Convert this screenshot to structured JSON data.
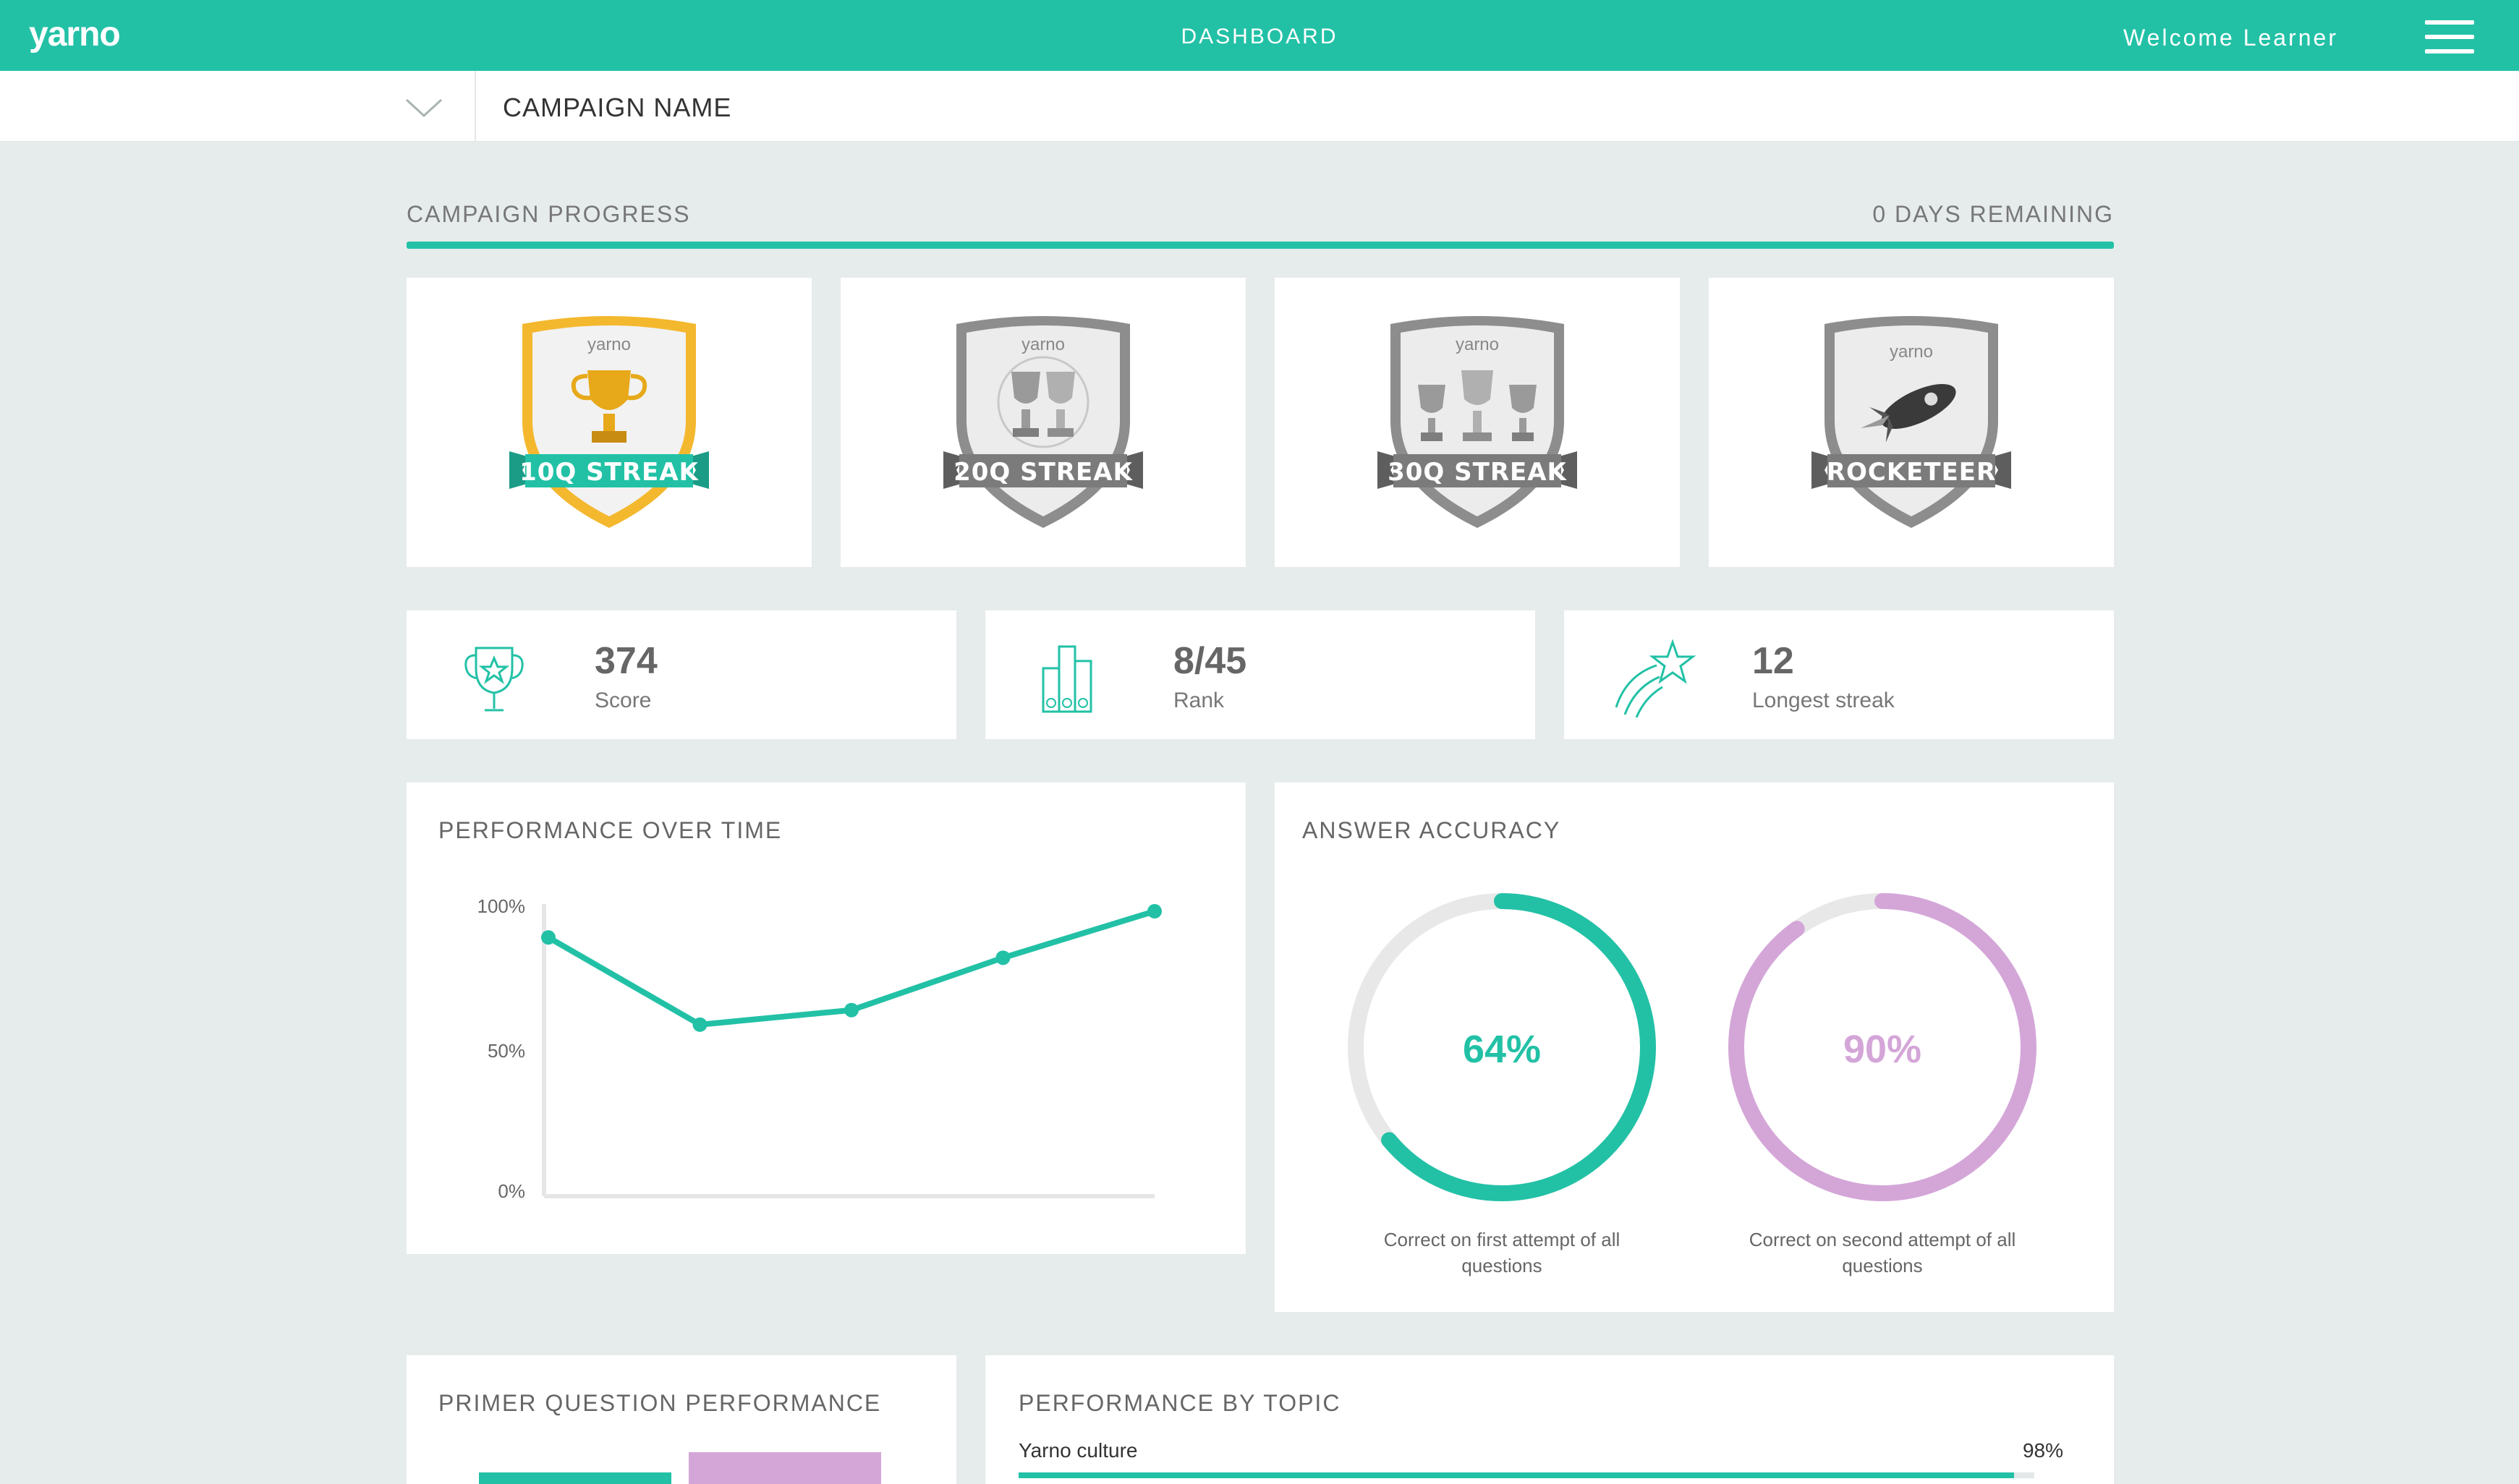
{
  "topbar": {
    "logo": "yarno",
    "title": "DASHBOARD",
    "welcome": "Welcome Learner"
  },
  "campaign": {
    "name": "CAMPAIGN NAME"
  },
  "progress": {
    "label": "CAMPAIGN PROGRESS",
    "days_remaining": "0 DAYS REMAINING",
    "fraction": 1.0
  },
  "badges": [
    {
      "label": "10Q STREAK",
      "brand": "yarno",
      "icon": "trophy-icon",
      "status": "earned"
    },
    {
      "label": "20Q STREAK",
      "brand": "yarno",
      "icon": "two-trophies-icon",
      "status": "locked"
    },
    {
      "label": "30Q STREAK",
      "brand": "yarno",
      "icon": "three-trophies-icon",
      "status": "locked"
    },
    {
      "label": "ROCKETEER",
      "brand": "yarno",
      "icon": "rocket-icon",
      "status": "locked"
    }
  ],
  "stats": [
    {
      "value": "374",
      "label": "Score",
      "icon": "trophy-star-icon"
    },
    {
      "value": "8/45",
      "label": "Rank",
      "icon": "podium-icon"
    },
    {
      "value": "12",
      "label": "Longest streak",
      "icon": "shooting-star-icon"
    }
  ],
  "performance": {
    "title": "PERFORMANCE OVER TIME",
    "y_ticks": [
      "100%",
      "50%",
      "0%"
    ]
  },
  "chart_data": {
    "type": "line",
    "x": [
      1,
      2,
      3,
      4,
      5
    ],
    "values": [
      89,
      59,
      64,
      82,
      98
    ],
    "ylim": [
      0,
      100
    ],
    "ytick_labels": [
      "100%",
      "50%",
      "0%"
    ],
    "grid": false,
    "color": "#22c1a6"
  },
  "accuracy": {
    "title": "ANSWER ACCURACY",
    "rings": [
      {
        "value": 64,
        "display": "64%",
        "label": "Correct on first attempt of all questions",
        "color": "#22c1a6"
      },
      {
        "value": 90,
        "display": "90%",
        "label": "Correct on second attempt of all questions",
        "color": "#d4a6d8"
      }
    ]
  },
  "primer": {
    "title": "PRIMER QUESTION PERFORMANCE",
    "bars": [
      {
        "color": "#22c1a6"
      },
      {
        "color": "#d4a6d8"
      }
    ]
  },
  "topics": {
    "title": "PERFORMANCE BY TOPIC",
    "items": [
      {
        "name": "Yarno culture",
        "display": "98%",
        "value": 98
      }
    ]
  },
  "colors": {
    "accent": "#22c1a6",
    "secondary": "#d4a6d8",
    "background": "#e6ecec"
  }
}
